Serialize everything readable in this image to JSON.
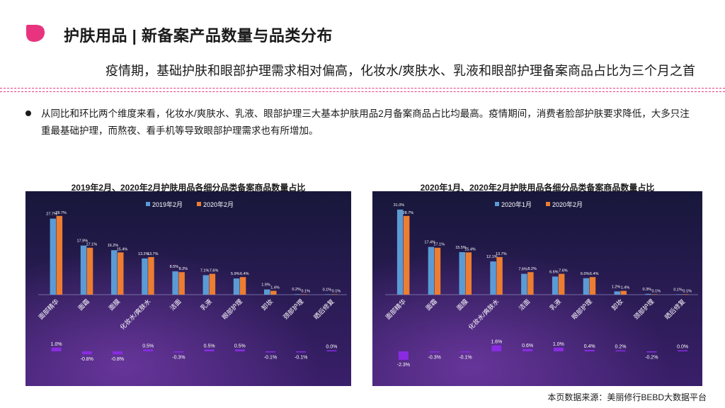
{
  "header": {
    "title": "护肤用品 | 新备案产品数量与品类分布",
    "subtitle": "疫情期，基础护肤和眼部护理需求相对偏高，化妆水/爽肤水、乳液和眼部护理备案商品占比为三个月之首"
  },
  "body": {
    "bullet": "从同比和环比两个维度来看，化妆水/爽肤水、乳液、眼部护理三大基本护肤用品2月备案商品占比均最高。疫情期间，消费者脸部护肤要求降低，大多只注重最基础护理，而熬夜、看手机等导致眼部护理需求也有所增加。"
  },
  "footer": {
    "source": "本页数据来源：美丽修行BEBD大数据平台"
  },
  "colors": {
    "series_a": "#5b9bd5",
    "series_b": "#ed7d31",
    "diff_bar": "#8a2be2",
    "accent": "#e43a8a",
    "panel_bg_top": "#17173a",
    "panel_bg_bottom": "#3a1f6a"
  },
  "chart_data": [
    {
      "type": "bar",
      "title": "2019年2月、2020年2月护肤用品各细分品类备案商品数量占比",
      "categories": [
        "面部精华",
        "面霜",
        "面膜",
        "化妆水/爽肤水",
        "洁面",
        "乳液",
        "眼部护理",
        "卸妆",
        "颈部护理",
        "晒后修复"
      ],
      "series": [
        {
          "name": "2019年2月",
          "values": [
            27.7,
            17.9,
            16.2,
            13.2,
            8.5,
            7.1,
            5.9,
            1.9,
            0.2,
            0.1
          ]
        },
        {
          "name": "2020年2月",
          "values": [
            28.7,
            17.1,
            15.4,
            13.7,
            8.2,
            7.6,
            6.4,
            1.4,
            0.1,
            0.1
          ]
        }
      ],
      "value_labels": [
        [
          "27.7%",
          "17.9%",
          "16.2%",
          "13.2%",
          "8.5%",
          "7.1%",
          "5.9%",
          "1.9%",
          "0.2%",
          "0.1%"
        ],
        [
          "28.7%",
          "17.1%",
          "15.4%",
          "13.7%",
          "8.2%",
          "7.6%",
          "6.4%",
          "1.4%",
          "0.1%",
          "0.1%"
        ]
      ],
      "diff": {
        "values": [
          1.0,
          -0.8,
          -0.8,
          0.5,
          -0.3,
          0.5,
          0.5,
          -0.1,
          -0.1,
          0.0
        ],
        "labels": [
          "1.0%",
          "-0.8%",
          "-0.8%",
          "0.5%",
          "-0.3%",
          "0.5%",
          "0.5%",
          "-0.1%",
          "-0.1%",
          "0.0%"
        ]
      },
      "legend": "top-center",
      "ylim": [
        0,
        32
      ]
    },
    {
      "type": "bar",
      "title": "2020年1月、2020年2月护肤用品各细分品类备案商品数量占比",
      "categories": [
        "面部精华",
        "面霜",
        "面膜",
        "化妆水/爽肤水",
        "洁面",
        "乳液",
        "眼部护理",
        "卸妆",
        "颈部护理",
        "晒后修复"
      ],
      "series": [
        {
          "name": "2020年1月",
          "values": [
            31.0,
            17.4,
            15.5,
            12.1,
            7.6,
            6.6,
            6.0,
            1.2,
            0.3,
            0.1
          ]
        },
        {
          "name": "2020年2月",
          "values": [
            28.7,
            17.1,
            15.4,
            13.7,
            8.2,
            7.6,
            6.4,
            1.4,
            0.1,
            0.1
          ]
        }
      ],
      "value_labels": [
        [
          "31.0%",
          "17.4%",
          "15.5%",
          "12.1%",
          "7.6%",
          "6.6%",
          "6.0%",
          "1.2%",
          "0.3%",
          "0.1%"
        ],
        [
          "28.7%",
          "17.1%",
          "15.4%",
          "13.7%",
          "8.2%",
          "7.6%",
          "6.4%",
          "1.4%",
          "0.1%",
          "0.1%"
        ]
      ],
      "diff": {
        "values": [
          -2.3,
          -0.3,
          -0.1,
          1.6,
          0.6,
          1.0,
          0.4,
          0.2,
          -0.2,
          0.0
        ],
        "labels": [
          "-2.3%",
          "-0.3%",
          "-0.1%",
          "1.6%",
          "0.6%",
          "1.0%",
          "0.4%",
          "0.2%",
          "-0.2%",
          "0.0%"
        ]
      },
      "legend": "top-center",
      "ylim": [
        0,
        32
      ]
    }
  ]
}
